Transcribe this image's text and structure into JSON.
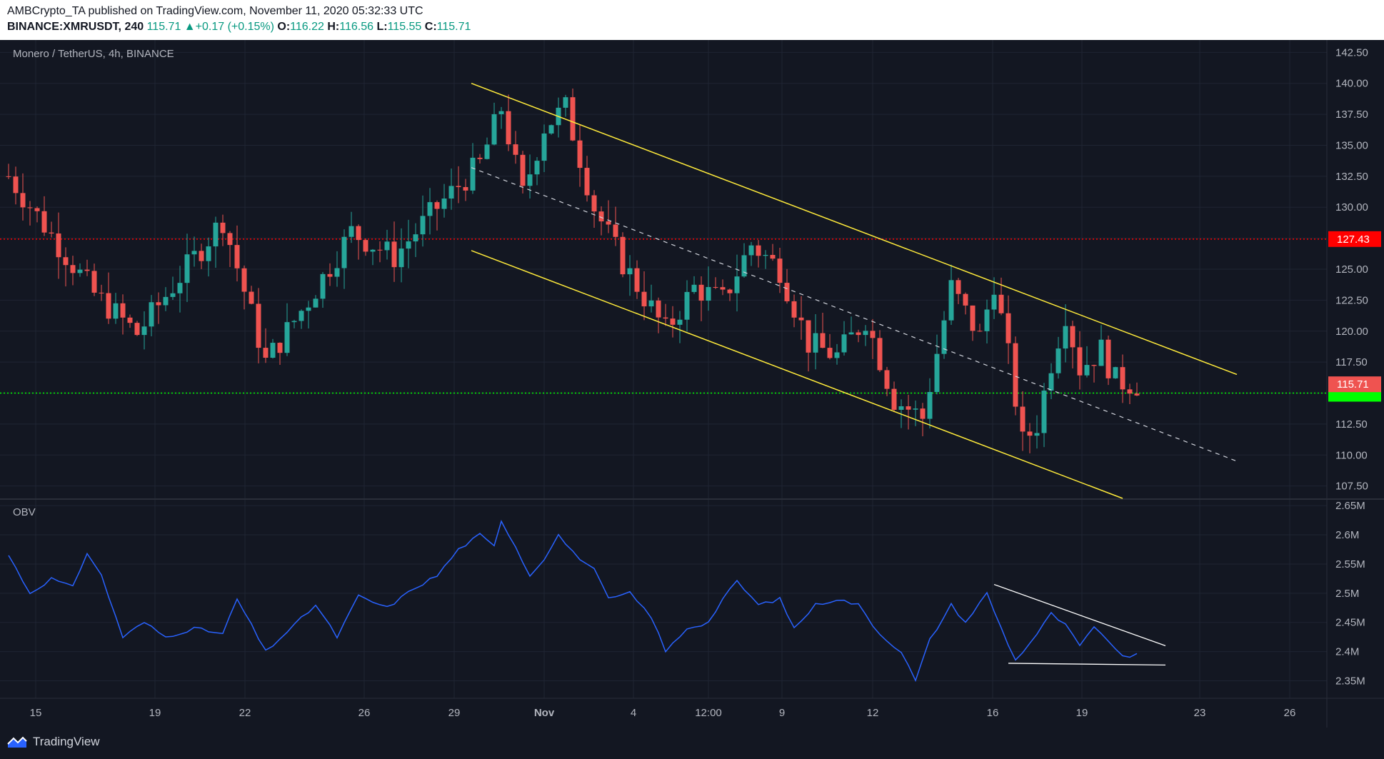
{
  "header": {
    "publisher": "AMBCrypto_TA published on TradingView.com, November 11, 2020 05:32:33 UTC",
    "symbol": "BINANCE:XMRUSDT, 240",
    "last": "115.71",
    "change": "+0.17 (+0.15%)",
    "o_label": "O:",
    "o_value": "116.22",
    "h_label": "H:",
    "h_value": "116.56",
    "l_label": "L:",
    "l_value": "115.55",
    "c_label": "C:",
    "c_value": "115.71"
  },
  "price_pane": {
    "title": "Monero / TetherUS, 4h, BINANCE"
  },
  "obv_pane": {
    "title": "OBV"
  },
  "footer": {
    "brand": "TradingView"
  },
  "colors": {
    "background": "#131722",
    "up": "#26a69a",
    "down": "#ef5350",
    "channel": "#ffeb3b",
    "obv_line": "#2962ff",
    "resistance": "#ff0000",
    "support": "#00ff00"
  },
  "chart_data": [
    {
      "type": "candlestick",
      "title": "Monero / TetherUS, 4h, BINANCE",
      "ylim": [
        106.5,
        143.5
      ],
      "y_ticks": [
        "142.50",
        "140.00",
        "137.50",
        "135.00",
        "132.50",
        "130.00",
        "127.50",
        "125.00",
        "122.50",
        "120.00",
        "117.50",
        "115.00",
        "112.50",
        "110.00",
        "107.50"
      ],
      "x_ticks": [
        "15",
        "19",
        "22",
        "26",
        "29",
        "Nov",
        "4",
        "12:00",
        "9",
        "12",
        "16",
        "19",
        "23",
        "26"
      ],
      "resistance": {
        "value": 127.43,
        "label": "127.43"
      },
      "current_price": {
        "value": 115.71,
        "label": "115.71"
      },
      "support": {
        "value": 115.0
      },
      "key_points": [
        {
          "bar": 0,
          "close": 132.5
        },
        {
          "bar": 12,
          "close": 123.0
        },
        {
          "bar": 18,
          "close": 119.8
        },
        {
          "bar": 30,
          "close": 129.0
        },
        {
          "bar": 36,
          "close": 117.5
        },
        {
          "bar": 42,
          "close": 122.5
        },
        {
          "bar": 48,
          "close": 128.0
        },
        {
          "bar": 54,
          "close": 126.0
        },
        {
          "bar": 60,
          "close": 130.0
        },
        {
          "bar": 66,
          "close": 133.5
        },
        {
          "bar": 69,
          "close": 138.0
        },
        {
          "bar": 72,
          "close": 131.0
        },
        {
          "bar": 75,
          "close": 136.5
        },
        {
          "bar": 78,
          "close": 138.0
        },
        {
          "bar": 82,
          "close": 130.0
        },
        {
          "bar": 86,
          "close": 125.5
        },
        {
          "bar": 92,
          "close": 120.0
        },
        {
          "bar": 96,
          "close": 123.5
        },
        {
          "bar": 100,
          "close": 122.5
        },
        {
          "bar": 104,
          "close": 127.0
        },
        {
          "bar": 108,
          "close": 125.0
        },
        {
          "bar": 112,
          "close": 119.0
        },
        {
          "bar": 116,
          "close": 118.0
        },
        {
          "bar": 120,
          "close": 121.0
        },
        {
          "bar": 124,
          "close": 114.5
        },
        {
          "bar": 128,
          "close": 113.0
        },
        {
          "bar": 132,
          "close": 123.5
        },
        {
          "bar": 136,
          "close": 119.5
        },
        {
          "bar": 138,
          "close": 124.0
        },
        {
          "bar": 140,
          "close": 118.0
        },
        {
          "bar": 142,
          "close": 111.0
        },
        {
          "bar": 144,
          "close": 112.5
        },
        {
          "bar": 146,
          "close": 117.5
        },
        {
          "bar": 148,
          "close": 121.5
        },
        {
          "bar": 150,
          "close": 117.0
        },
        {
          "bar": 153,
          "close": 118.5
        },
        {
          "bar": 155,
          "close": 116.0
        },
        {
          "bar": 158,
          "close": 115.7
        }
      ],
      "trendlines": [
        {
          "name": "channel-upper",
          "from": [
            66,
            140.0
          ],
          "to": [
            170,
            116.5
          ]
        },
        {
          "name": "channel-lower",
          "from": [
            66,
            126.5
          ],
          "to": [
            154,
            106.5
          ]
        },
        {
          "name": "channel-mid",
          "from": [
            66,
            133.2
          ],
          "to": [
            170,
            109.5
          ]
        }
      ]
    },
    {
      "type": "line",
      "title": "OBV",
      "ylim": [
        2.32,
        2.66
      ],
      "y_ticks": [
        "2.65M",
        "2.6M",
        "2.55M",
        "2.5M",
        "2.45M",
        "2.4M",
        "2.35M"
      ],
      "key_points": [
        {
          "bar": 0,
          "value": 2.565
        },
        {
          "bar": 3,
          "value": 2.5
        },
        {
          "bar": 6,
          "value": 2.525
        },
        {
          "bar": 9,
          "value": 2.51
        },
        {
          "bar": 11,
          "value": 2.57
        },
        {
          "bar": 13,
          "value": 2.53
        },
        {
          "bar": 16,
          "value": 2.425
        },
        {
          "bar": 19,
          "value": 2.45
        },
        {
          "bar": 22,
          "value": 2.425
        },
        {
          "bar": 26,
          "value": 2.44
        },
        {
          "bar": 30,
          "value": 2.43
        },
        {
          "bar": 32,
          "value": 2.49
        },
        {
          "bar": 36,
          "value": 2.4
        },
        {
          "bar": 40,
          "value": 2.445
        },
        {
          "bar": 43,
          "value": 2.48
        },
        {
          "bar": 46,
          "value": 2.425
        },
        {
          "bar": 49,
          "value": 2.495
        },
        {
          "bar": 53,
          "value": 2.475
        },
        {
          "bar": 57,
          "value": 2.51
        },
        {
          "bar": 60,
          "value": 2.53
        },
        {
          "bar": 63,
          "value": 2.575
        },
        {
          "bar": 66,
          "value": 2.6
        },
        {
          "bar": 68,
          "value": 2.58
        },
        {
          "bar": 69,
          "value": 2.625
        },
        {
          "bar": 71,
          "value": 2.58
        },
        {
          "bar": 73,
          "value": 2.53
        },
        {
          "bar": 75,
          "value": 2.56
        },
        {
          "bar": 77,
          "value": 2.6
        },
        {
          "bar": 79,
          "value": 2.57
        },
        {
          "bar": 82,
          "value": 2.54
        },
        {
          "bar": 84,
          "value": 2.49
        },
        {
          "bar": 87,
          "value": 2.5
        },
        {
          "bar": 90,
          "value": 2.46
        },
        {
          "bar": 92,
          "value": 2.4
        },
        {
          "bar": 95,
          "value": 2.44
        },
        {
          "bar": 98,
          "value": 2.45
        },
        {
          "bar": 100,
          "value": 2.49
        },
        {
          "bar": 102,
          "value": 2.52
        },
        {
          "bar": 105,
          "value": 2.48
        },
        {
          "bar": 108,
          "value": 2.49
        },
        {
          "bar": 110,
          "value": 2.44
        },
        {
          "bar": 113,
          "value": 2.48
        },
        {
          "bar": 116,
          "value": 2.49
        },
        {
          "bar": 119,
          "value": 2.48
        },
        {
          "bar": 122,
          "value": 2.43
        },
        {
          "bar": 125,
          "value": 2.4
        },
        {
          "bar": 127,
          "value": 2.35
        },
        {
          "bar": 129,
          "value": 2.42
        },
        {
          "bar": 132,
          "value": 2.48
        },
        {
          "bar": 134,
          "value": 2.45
        },
        {
          "bar": 137,
          "value": 2.5
        },
        {
          "bar": 139,
          "value": 2.44
        },
        {
          "bar": 141,
          "value": 2.385
        },
        {
          "bar": 144,
          "value": 2.43
        },
        {
          "bar": 146,
          "value": 2.465
        },
        {
          "bar": 148,
          "value": 2.445
        },
        {
          "bar": 150,
          "value": 2.41
        },
        {
          "bar": 152,
          "value": 2.44
        },
        {
          "bar": 154,
          "value": 2.42
        },
        {
          "bar": 156,
          "value": 2.39
        },
        {
          "bar": 158,
          "value": 2.395
        }
      ],
      "trendlines": [
        {
          "name": "obv-upper",
          "from": [
            138,
            2.515
          ],
          "to": [
            162,
            2.41
          ]
        },
        {
          "name": "obv-lower",
          "from": [
            140,
            2.38
          ],
          "to": [
            162,
            2.377
          ]
        }
      ]
    }
  ]
}
